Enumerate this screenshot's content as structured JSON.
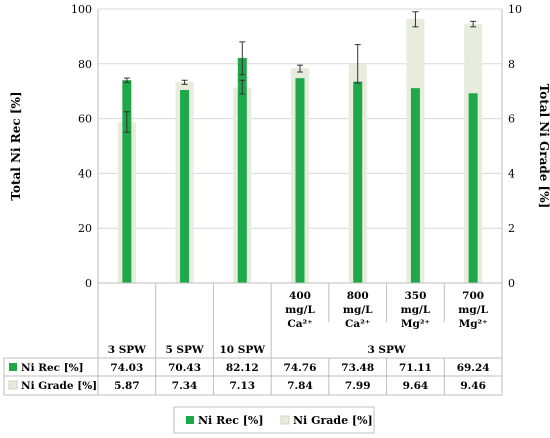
{
  "chart_data": {
    "type": "bar",
    "categories": [
      "3 SPW",
      "5 SPW",
      "10 SPW",
      "400 mg/L Ca²⁺",
      "800 mg/L Ca²⁺",
      "350 mg/L Mg²⁺",
      "700 mg/L Mg²⁺"
    ],
    "category_lines": [
      [
        "3 SPW"
      ],
      [
        "5 SPW"
      ],
      [
        "10 SPW"
      ],
      [
        "400",
        "mg/L",
        "Ca²⁺"
      ],
      [
        "800",
        "mg/L",
        "Ca²⁺"
      ],
      [
        "350",
        "mg/L",
        "Mg²⁺"
      ],
      [
        "700",
        "mg/L",
        "Mg²⁺"
      ]
    ],
    "group_label": "3 SPW",
    "ylabel": "Total Ni Rec [%]",
    "y2label": "Total Ni Grade [%]",
    "ylim": [
      0,
      100
    ],
    "y2lim": [
      0,
      10
    ],
    "yticks": [
      "0",
      "20",
      "40",
      "60",
      "80",
      "100"
    ],
    "y2ticks": [
      "0",
      "2",
      "4",
      "6",
      "8",
      "10"
    ],
    "series": [
      {
        "name": "Ni Rec [%]",
        "axis": "left",
        "color": "#1fa84a",
        "values": [
          74.03,
          70.43,
          82.12,
          74.76,
          73.48,
          71.11,
          69.24
        ],
        "labels": [
          "74.03",
          "70.43",
          "82.12",
          "74.76",
          "73.48",
          "71.11",
          "69.24"
        ],
        "error_low": [
          73.2,
          null,
          76.0,
          null,
          null,
          null,
          null
        ],
        "error_high": [
          74.8,
          null,
          88.0,
          null,
          null,
          null,
          null
        ]
      },
      {
        "name": "Ni Grade [%]",
        "axis": "right",
        "color": "#e8ecdc",
        "values": [
          5.87,
          7.34,
          7.13,
          7.84,
          7.99,
          9.64,
          9.46
        ],
        "labels": [
          "5.87",
          "7.34",
          "7.13",
          "7.84",
          "7.99",
          "9.64",
          "9.46"
        ],
        "error_low": [
          5.5,
          7.25,
          6.9,
          7.7,
          7.3,
          9.35,
          9.35
        ],
        "error_high": [
          6.25,
          7.4,
          7.4,
          7.95,
          8.7,
          9.9,
          9.55
        ]
      }
    ],
    "legend_position": "bottom"
  }
}
